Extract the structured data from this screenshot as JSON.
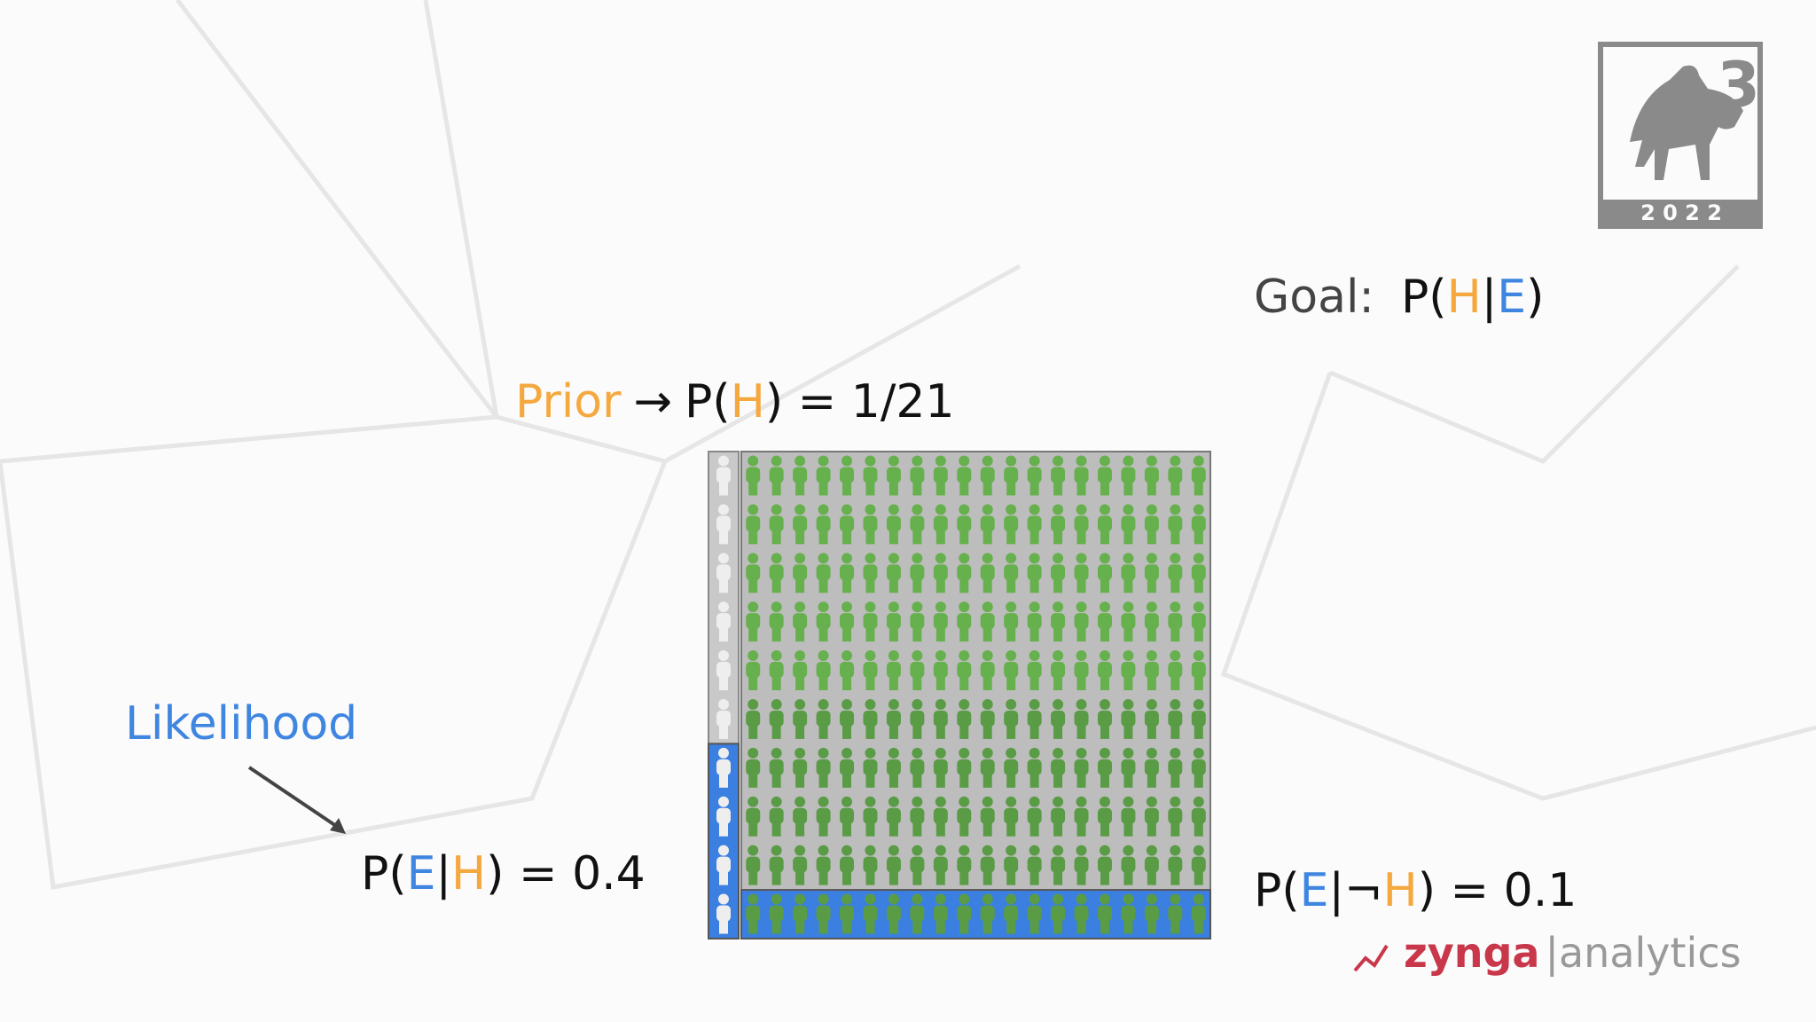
{
  "goal": {
    "label": "Goal:",
    "expression": [
      "P(",
      "H",
      "|",
      "E",
      ")"
    ]
  },
  "prior": {
    "label": "Prior",
    "arrow": "→",
    "expression": [
      "P(",
      "H",
      ") = 1/21"
    ]
  },
  "likelihood": {
    "label": "Likelihood",
    "expression": [
      "P(",
      "E",
      "|",
      "H",
      ") = 0.4"
    ]
  },
  "not_h_likelihood": {
    "expression": [
      "P(",
      "E",
      "|¬",
      "H",
      ") = 0.1"
    ]
  },
  "logo": {
    "number": "3",
    "year": "2 0 2 2"
  },
  "footer": {
    "brand": "zynga",
    "product": "analytics"
  }
}
